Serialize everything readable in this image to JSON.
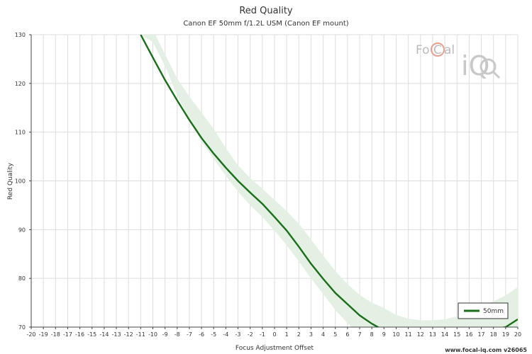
{
  "chart_data": {
    "type": "line",
    "title": "Red Quality",
    "subtitle": "Canon EF 50mm f/1.2L USM (Canon EF mount)",
    "xlabel": "Focus Adjustment Offset",
    "ylabel": "Red Quality",
    "xlim": [
      -20,
      20
    ],
    "ylim": [
      70,
      130
    ],
    "x_ticks": [
      -20,
      -19,
      -18,
      -17,
      -16,
      -15,
      -14,
      -13,
      -12,
      -11,
      -10,
      -9,
      -8,
      -7,
      -6,
      -5,
      -4,
      -3,
      -2,
      -1,
      0,
      1,
      2,
      3,
      4,
      5,
      6,
      7,
      8,
      9,
      10,
      11,
      12,
      13,
      14,
      15,
      16,
      17,
      18,
      19,
      20
    ],
    "y_ticks": [
      70,
      80,
      90,
      100,
      110,
      120,
      130
    ],
    "grid": true,
    "legend_position": "bottom-right",
    "series": [
      {
        "name": "50mm",
        "color": "#1a6e1a",
        "x": [
          -11,
          -10,
          -9,
          -8,
          -7,
          -6,
          -5,
          -4,
          -3,
          -2,
          -1,
          0,
          1,
          2,
          3,
          4,
          5,
          6,
          7,
          8,
          9,
          10,
          11,
          12,
          13,
          14,
          15,
          16,
          17,
          18,
          19,
          20
        ],
        "values": [
          130,
          125.3,
          120.7,
          116.5,
          112.5,
          108.8,
          105.6,
          102.7,
          100.0,
          97.6,
          95.3,
          92.6,
          89.8,
          86.5,
          83.0,
          79.9,
          77.0,
          74.7,
          72.4,
          70.7,
          69.3,
          68.2,
          67.6,
          67.3,
          67.3,
          67.5,
          67.9,
          68.4,
          69.0,
          69.6,
          70.0,
          71.6
        ],
        "band_lower": [
          130,
          128.5,
          123.5,
          117.5,
          112.5,
          108.0,
          104.5,
          101.0,
          97.8,
          95.0,
          92.6,
          89.8,
          86.8,
          83.5,
          80.0,
          76.8,
          73.5,
          70.8,
          68.5,
          66.8,
          65.5,
          64.5,
          64.0,
          63.8,
          63.8,
          64.0,
          64.5,
          65.0,
          65.8,
          66.5,
          67.2,
          68.0
        ],
        "band_upper": [
          136.0,
          131.0,
          126.0,
          121.0,
          117.3,
          114.0,
          110.7,
          106.7,
          103.2,
          100.6,
          98.4,
          96.1,
          93.8,
          91.2,
          88.0,
          84.7,
          81.5,
          78.8,
          76.6,
          75.0,
          73.9,
          72.5,
          71.7,
          71.4,
          71.4,
          71.6,
          72.2,
          73.3,
          74.1,
          75.3,
          76.5,
          78.2
        ]
      }
    ]
  },
  "logo": {
    "text_a": "Fo",
    "text_b": "C",
    "text_c": "al",
    "text_d": "iQ"
  },
  "footer": {
    "text": "www.focal-iq.com  v26065"
  }
}
